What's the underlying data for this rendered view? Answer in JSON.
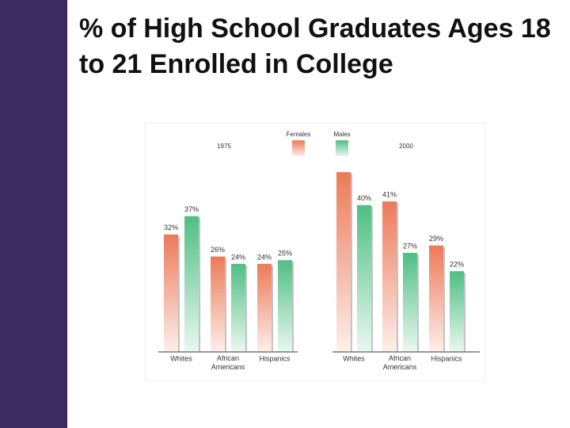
{
  "chart_data": {
    "type": "bar",
    "title": "% of High School Graduates Ages 18 to 21 Enrolled in College",
    "groups": [
      "1975",
      "2000"
    ],
    "categories": [
      "Whites",
      "African Americans",
      "Hispanics",
      "Whites",
      "African Americans",
      "Hispanics"
    ],
    "series": [
      {
        "name": "Females",
        "color": "#ec7a58",
        "values": [
          32,
          26,
          24,
          49,
          41,
          29
        ],
        "value_labels": [
          "32%",
          "26%",
          "24%",
          null,
          "41%",
          "29%"
        ]
      },
      {
        "name": "Males",
        "color": "#4fbf84",
        "values": [
          37,
          24,
          25,
          40,
          27,
          22
        ],
        "value_labels": [
          "37%",
          "24%",
          "25%",
          "40%",
          "27%",
          "22%"
        ]
      }
    ]
  }
}
